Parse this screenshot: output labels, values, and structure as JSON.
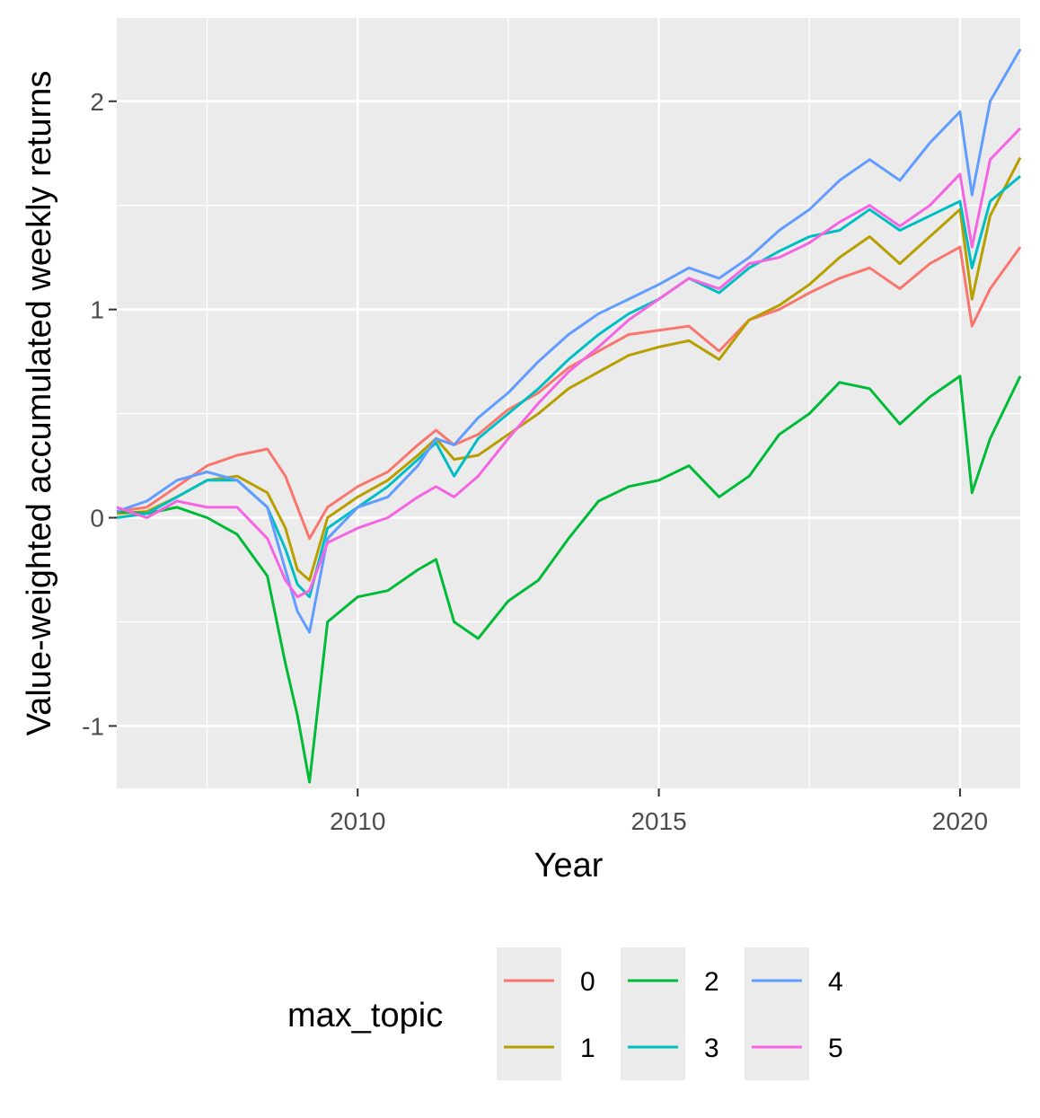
{
  "chart_data": {
    "type": "line",
    "title": "",
    "xlabel": "Year",
    "ylabel": "Value-weighted accumulated weekly returns",
    "xlim": [
      2006.0,
      2021.0
    ],
    "ylim": [
      -1.3,
      2.4
    ],
    "x_ticks": [
      2010,
      2015,
      2020
    ],
    "x_tick_labels": [
      "2010",
      "2015",
      "2020"
    ],
    "y_ticks": [
      -1,
      0,
      1,
      2
    ],
    "y_tick_labels": [
      "-1",
      "0",
      "1",
      "2"
    ],
    "grid": true,
    "legend": {
      "title": "max_topic",
      "position": "bottom"
    },
    "series": [
      {
        "name": "0",
        "color": "#F8766D",
        "points": [
          [
            2006.0,
            0.03
          ],
          [
            2006.5,
            0.05
          ],
          [
            2007.0,
            0.15
          ],
          [
            2007.5,
            0.25
          ],
          [
            2008.0,
            0.3
          ],
          [
            2008.5,
            0.33
          ],
          [
            2008.8,
            0.2
          ],
          [
            2009.0,
            0.05
          ],
          [
            2009.2,
            -0.1
          ],
          [
            2009.5,
            0.05
          ],
          [
            2010.0,
            0.15
          ],
          [
            2010.5,
            0.22
          ],
          [
            2011.0,
            0.35
          ],
          [
            2011.3,
            0.42
          ],
          [
            2011.6,
            0.35
          ],
          [
            2012.0,
            0.4
          ],
          [
            2012.5,
            0.52
          ],
          [
            2013.0,
            0.6
          ],
          [
            2013.5,
            0.72
          ],
          [
            2014.0,
            0.8
          ],
          [
            2014.5,
            0.88
          ],
          [
            2015.0,
            0.9
          ],
          [
            2015.5,
            0.92
          ],
          [
            2016.0,
            0.8
          ],
          [
            2016.5,
            0.95
          ],
          [
            2017.0,
            1.0
          ],
          [
            2017.5,
            1.08
          ],
          [
            2018.0,
            1.15
          ],
          [
            2018.5,
            1.2
          ],
          [
            2019.0,
            1.1
          ],
          [
            2019.5,
            1.22
          ],
          [
            2020.0,
            1.3
          ],
          [
            2020.2,
            0.92
          ],
          [
            2020.5,
            1.1
          ],
          [
            2021.0,
            1.3
          ]
        ]
      },
      {
        "name": "1",
        "color": "#B79F00",
        "points": [
          [
            2006.0,
            0.02
          ],
          [
            2006.5,
            0.03
          ],
          [
            2007.0,
            0.1
          ],
          [
            2007.5,
            0.18
          ],
          [
            2008.0,
            0.2
          ],
          [
            2008.5,
            0.12
          ],
          [
            2008.8,
            -0.05
          ],
          [
            2009.0,
            -0.25
          ],
          [
            2009.2,
            -0.3
          ],
          [
            2009.5,
            0.0
          ],
          [
            2010.0,
            0.1
          ],
          [
            2010.5,
            0.18
          ],
          [
            2011.0,
            0.3
          ],
          [
            2011.3,
            0.38
          ],
          [
            2011.6,
            0.28
          ],
          [
            2012.0,
            0.3
          ],
          [
            2012.5,
            0.4
          ],
          [
            2013.0,
            0.5
          ],
          [
            2013.5,
            0.62
          ],
          [
            2014.0,
            0.7
          ],
          [
            2014.5,
            0.78
          ],
          [
            2015.0,
            0.82
          ],
          [
            2015.5,
            0.85
          ],
          [
            2016.0,
            0.76
          ],
          [
            2016.5,
            0.95
          ],
          [
            2017.0,
            1.02
          ],
          [
            2017.5,
            1.12
          ],
          [
            2018.0,
            1.25
          ],
          [
            2018.5,
            1.35
          ],
          [
            2019.0,
            1.22
          ],
          [
            2019.5,
            1.35
          ],
          [
            2020.0,
            1.48
          ],
          [
            2020.2,
            1.05
          ],
          [
            2020.5,
            1.45
          ],
          [
            2021.0,
            1.73
          ]
        ]
      },
      {
        "name": "2",
        "color": "#00BA38",
        "points": [
          [
            2006.0,
            0.03
          ],
          [
            2006.5,
            0.02
          ],
          [
            2007.0,
            0.05
          ],
          [
            2007.5,
            0.0
          ],
          [
            2008.0,
            -0.08
          ],
          [
            2008.5,
            -0.28
          ],
          [
            2008.8,
            -0.7
          ],
          [
            2009.0,
            -0.95
          ],
          [
            2009.2,
            -1.27
          ],
          [
            2009.5,
            -0.5
          ],
          [
            2010.0,
            -0.38
          ],
          [
            2010.5,
            -0.35
          ],
          [
            2011.0,
            -0.25
          ],
          [
            2011.3,
            -0.2
          ],
          [
            2011.6,
            -0.5
          ],
          [
            2012.0,
            -0.58
          ],
          [
            2012.5,
            -0.4
          ],
          [
            2013.0,
            -0.3
          ],
          [
            2013.5,
            -0.1
          ],
          [
            2014.0,
            0.08
          ],
          [
            2014.5,
            0.15
          ],
          [
            2015.0,
            0.18
          ],
          [
            2015.5,
            0.25
          ],
          [
            2016.0,
            0.1
          ],
          [
            2016.5,
            0.2
          ],
          [
            2017.0,
            0.4
          ],
          [
            2017.5,
            0.5
          ],
          [
            2018.0,
            0.65
          ],
          [
            2018.5,
            0.62
          ],
          [
            2019.0,
            0.45
          ],
          [
            2019.5,
            0.58
          ],
          [
            2020.0,
            0.68
          ],
          [
            2020.2,
            0.12
          ],
          [
            2020.5,
            0.38
          ],
          [
            2021.0,
            0.68
          ]
        ]
      },
      {
        "name": "3",
        "color": "#00BFC4",
        "points": [
          [
            2006.0,
            0.0
          ],
          [
            2006.5,
            0.02
          ],
          [
            2007.0,
            0.1
          ],
          [
            2007.5,
            0.18
          ],
          [
            2008.0,
            0.18
          ],
          [
            2008.5,
            0.05
          ],
          [
            2008.8,
            -0.15
          ],
          [
            2009.0,
            -0.32
          ],
          [
            2009.2,
            -0.38
          ],
          [
            2009.5,
            -0.05
          ],
          [
            2010.0,
            0.05
          ],
          [
            2010.5,
            0.15
          ],
          [
            2011.0,
            0.28
          ],
          [
            2011.3,
            0.36
          ],
          [
            2011.6,
            0.2
          ],
          [
            2012.0,
            0.38
          ],
          [
            2012.5,
            0.5
          ],
          [
            2013.0,
            0.62
          ],
          [
            2013.5,
            0.76
          ],
          [
            2014.0,
            0.88
          ],
          [
            2014.5,
            0.98
          ],
          [
            2015.0,
            1.05
          ],
          [
            2015.5,
            1.15
          ],
          [
            2016.0,
            1.08
          ],
          [
            2016.5,
            1.2
          ],
          [
            2017.0,
            1.28
          ],
          [
            2017.5,
            1.35
          ],
          [
            2018.0,
            1.38
          ],
          [
            2018.5,
            1.48
          ],
          [
            2019.0,
            1.38
          ],
          [
            2019.5,
            1.45
          ],
          [
            2020.0,
            1.52
          ],
          [
            2020.2,
            1.2
          ],
          [
            2020.5,
            1.52
          ],
          [
            2021.0,
            1.64
          ]
        ]
      },
      {
        "name": "4",
        "color": "#619CFF",
        "points": [
          [
            2006.0,
            0.03
          ],
          [
            2006.5,
            0.08
          ],
          [
            2007.0,
            0.18
          ],
          [
            2007.5,
            0.22
          ],
          [
            2008.0,
            0.18
          ],
          [
            2008.5,
            0.05
          ],
          [
            2008.8,
            -0.25
          ],
          [
            2009.0,
            -0.45
          ],
          [
            2009.2,
            -0.55
          ],
          [
            2009.5,
            -0.1
          ],
          [
            2010.0,
            0.05
          ],
          [
            2010.5,
            0.1
          ],
          [
            2011.0,
            0.25
          ],
          [
            2011.3,
            0.38
          ],
          [
            2011.6,
            0.35
          ],
          [
            2012.0,
            0.48
          ],
          [
            2012.5,
            0.6
          ],
          [
            2013.0,
            0.75
          ],
          [
            2013.5,
            0.88
          ],
          [
            2014.0,
            0.98
          ],
          [
            2014.5,
            1.05
          ],
          [
            2015.0,
            1.12
          ],
          [
            2015.5,
            1.2
          ],
          [
            2016.0,
            1.15
          ],
          [
            2016.5,
            1.25
          ],
          [
            2017.0,
            1.38
          ],
          [
            2017.5,
            1.48
          ],
          [
            2018.0,
            1.62
          ],
          [
            2018.5,
            1.72
          ],
          [
            2019.0,
            1.62
          ],
          [
            2019.5,
            1.8
          ],
          [
            2020.0,
            1.95
          ],
          [
            2020.2,
            1.55
          ],
          [
            2020.5,
            2.0
          ],
          [
            2021.0,
            2.25
          ]
        ]
      },
      {
        "name": "5",
        "color": "#F564E3",
        "points": [
          [
            2006.0,
            0.05
          ],
          [
            2006.5,
            0.0
          ],
          [
            2007.0,
            0.08
          ],
          [
            2007.5,
            0.05
          ],
          [
            2008.0,
            0.05
          ],
          [
            2008.5,
            -0.1
          ],
          [
            2008.8,
            -0.3
          ],
          [
            2009.0,
            -0.38
          ],
          [
            2009.2,
            -0.35
          ],
          [
            2009.5,
            -0.12
          ],
          [
            2010.0,
            -0.05
          ],
          [
            2010.5,
            0.0
          ],
          [
            2011.0,
            0.1
          ],
          [
            2011.3,
            0.15
          ],
          [
            2011.6,
            0.1
          ],
          [
            2012.0,
            0.2
          ],
          [
            2012.5,
            0.38
          ],
          [
            2013.0,
            0.55
          ],
          [
            2013.5,
            0.7
          ],
          [
            2014.0,
            0.82
          ],
          [
            2014.5,
            0.95
          ],
          [
            2015.0,
            1.05
          ],
          [
            2015.5,
            1.15
          ],
          [
            2016.0,
            1.1
          ],
          [
            2016.5,
            1.22
          ],
          [
            2017.0,
            1.25
          ],
          [
            2017.5,
            1.32
          ],
          [
            2018.0,
            1.42
          ],
          [
            2018.5,
            1.5
          ],
          [
            2019.0,
            1.4
          ],
          [
            2019.5,
            1.5
          ],
          [
            2020.0,
            1.65
          ],
          [
            2020.2,
            1.3
          ],
          [
            2020.5,
            1.72
          ],
          [
            2021.0,
            1.87
          ]
        ]
      }
    ]
  }
}
